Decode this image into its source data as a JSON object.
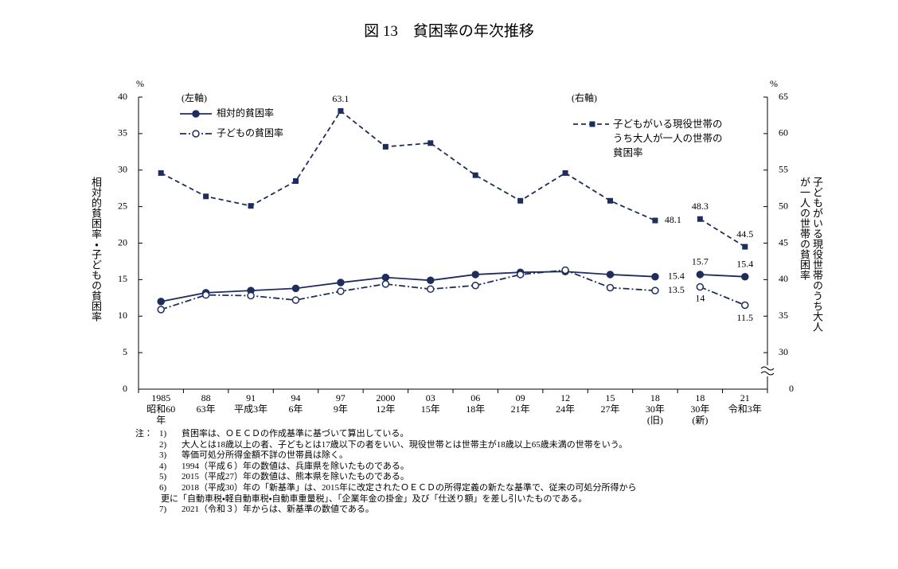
{
  "chart_data": {
    "type": "line",
    "title": "図 13　貧困率の年次推移",
    "ylabel": "相対的貧困率・子どもの貧困率",
    "y2label": "子どもがいる現役世帯のうち大人が一人の世帯の貧困率",
    "yunit": "%",
    "y2unit": "%",
    "left_axis_note": "(左軸)",
    "right_axis_note": "(右軸)",
    "categories": [
      [
        "1985",
        "昭和60",
        "年"
      ],
      [
        "88",
        "63年"
      ],
      [
        "91",
        "平成3年"
      ],
      [
        "94",
        "6年"
      ],
      [
        "97",
        "9年"
      ],
      [
        "2000",
        "12年"
      ],
      [
        "03",
        "15年"
      ],
      [
        "06",
        "18年"
      ],
      [
        "09",
        "21年"
      ],
      [
        "12",
        "24年"
      ],
      [
        "15",
        "27年"
      ],
      [
        "18",
        "30年",
        "(旧)"
      ],
      [
        "18",
        "30年",
        "(新)"
      ],
      [
        "21",
        "令和3年"
      ]
    ],
    "series_break": 12,
    "series": [
      {
        "name": "相対的貧困率",
        "color": "#1f2d5c",
        "style": "solid",
        "marker": "filled-circle",
        "values": [
          12.0,
          13.2,
          13.5,
          13.8,
          14.6,
          15.3,
          14.9,
          15.7,
          16.0,
          16.1,
          15.7,
          15.4,
          15.7,
          15.4
        ],
        "label_indices": [
          11,
          12,
          13
        ]
      },
      {
        "name": "子どもの貧困率",
        "color": "#1f2d5c",
        "style": "dash-dot",
        "marker": "open-circle",
        "values": [
          10.9,
          12.9,
          12.8,
          12.2,
          13.4,
          14.4,
          13.7,
          14.2,
          15.7,
          16.3,
          13.9,
          13.5,
          14.0,
          11.5
        ],
        "label_indices": [
          11,
          12,
          13
        ]
      },
      {
        "name": "子どもがいる現役世帯のうち大人が一人の世帯の貧困率",
        "color": "#1f2d5c",
        "style": "dashed",
        "marker": "square",
        "axis": "y2",
        "values": [
          54.6,
          51.4,
          50.1,
          53.5,
          63.1,
          58.2,
          58.7,
          54.3,
          50.8,
          54.6,
          50.8,
          48.1,
          48.3,
          44.5
        ],
        "label_indices": [
          4,
          11,
          12,
          13
        ]
      }
    ],
    "ylim": [
      0,
      40
    ],
    "yticks": [
      0,
      5,
      10,
      15,
      20,
      25,
      30,
      35,
      40
    ],
    "y2lim": [
      25,
      65
    ],
    "y2ticks": [
      30,
      35,
      40,
      45,
      50,
      55,
      60,
      65
    ],
    "y2_axis_break": true,
    "y2_floor_tick": 0,
    "notes": {
      "prefix": "注：",
      "items": [
        {
          "num": "1)",
          "lines": [
            "貧困率は、ＯＥＣＤの作成基準に基づいて算出している。"
          ]
        },
        {
          "num": "2)",
          "lines": [
            "大人とは18歳以上の者、子どもとは17歳以下の者をいい、現役世帯とは世帯主が18歳以上65歳未満の世帯をいう。"
          ]
        },
        {
          "num": "3)",
          "lines": [
            "等価可処分所得金額不詳の世帯員は除く。"
          ]
        },
        {
          "num": "4)",
          "lines": [
            "1994（平成６）年の数値は、兵庫県を除いたものである。"
          ]
        },
        {
          "num": "5)",
          "lines": [
            "2015（平成27）年の数値は、熊本県を除いたものである。"
          ]
        },
        {
          "num": "6)",
          "lines": [
            "2018（平成30）年の「新基準」は、2015年に改定されたＯＥＣＤの所得定義の新たな基準で、従来の可処分所得から",
            "更に「自動車税・軽自動車税・自動車重量税」、「企業年金の掛金」及び「仕送り額」を差し引いたものである。"
          ]
        },
        {
          "num": "7)",
          "lines": [
            "2021（令和３）年からは、新基準の数値である。"
          ]
        }
      ]
    }
  }
}
